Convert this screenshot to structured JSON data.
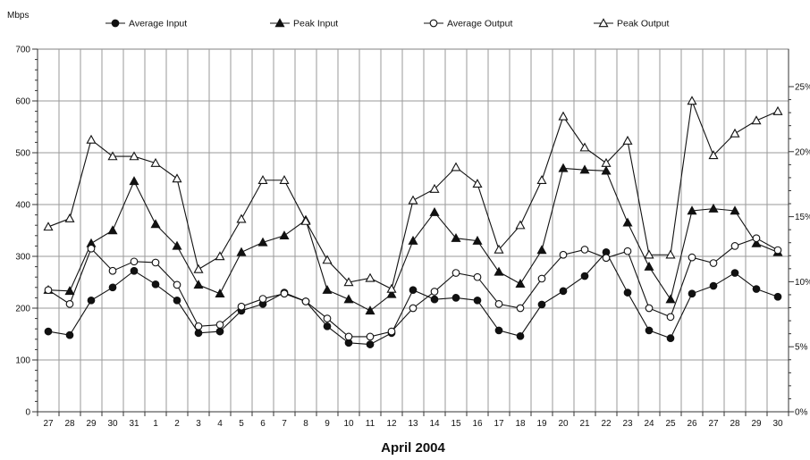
{
  "chart_data": {
    "type": "line",
    "title": "",
    "y_unit": "Mbps",
    "xlabel": "April 2004",
    "ylabel": "Mbps",
    "ylim": [
      0,
      700
    ],
    "y_ticks": [
      0,
      100,
      200,
      300,
      400,
      500,
      600,
      700
    ],
    "y2_ticks": [
      "0%",
      "5%",
      "10%",
      "15%",
      "20%",
      "25%"
    ],
    "grid": true,
    "legend_position": "top",
    "categories": [
      "27",
      "28",
      "29",
      "30",
      "31",
      "1",
      "2",
      "3",
      "4",
      "5",
      "6",
      "7",
      "8",
      "9",
      "10",
      "11",
      "12",
      "13",
      "14",
      "15",
      "16",
      "17",
      "18",
      "19",
      "20",
      "21",
      "22",
      "23",
      "24",
      "25",
      "26",
      "27",
      "28",
      "29",
      "30"
    ],
    "series": [
      {
        "name": "Average Input",
        "marker": "filled-circle",
        "values": [
          155,
          148,
          215,
          240,
          272,
          246,
          215,
          152,
          155,
          195,
          208,
          230,
          213,
          165,
          133,
          130,
          152,
          235,
          217,
          220,
          215,
          157,
          146,
          207,
          233,
          262,
          308,
          230,
          157,
          142,
          228,
          243,
          268,
          237,
          222
        ]
      },
      {
        "name": "Peak Input",
        "marker": "filled-triangle",
        "values": [
          235,
          233,
          325,
          350,
          445,
          362,
          320,
          245,
          228,
          308,
          327,
          340,
          370,
          235,
          217,
          195,
          227,
          330,
          385,
          335,
          330,
          270,
          247,
          312,
          470,
          467,
          465,
          365,
          280,
          217,
          388,
          392,
          388,
          325,
          308
        ]
      },
      {
        "name": "Average Output",
        "marker": "open-circle",
        "values": [
          235,
          208,
          315,
          272,
          290,
          288,
          245,
          165,
          168,
          203,
          218,
          228,
          213,
          180,
          145,
          145,
          155,
          200,
          232,
          268,
          260,
          208,
          200,
          257,
          303,
          313,
          297,
          310,
          200,
          183,
          298,
          287,
          320,
          335,
          312
        ]
      },
      {
        "name": "Peak Output",
        "marker": "open-triangle",
        "values": [
          357,
          373,
          525,
          493,
          493,
          480,
          450,
          275,
          300,
          372,
          447,
          447,
          368,
          293,
          250,
          258,
          237,
          408,
          430,
          472,
          440,
          313,
          360,
          447,
          570,
          510,
          480,
          523,
          303,
          303,
          600,
          495,
          537,
          562,
          580
        ]
      }
    ]
  }
}
